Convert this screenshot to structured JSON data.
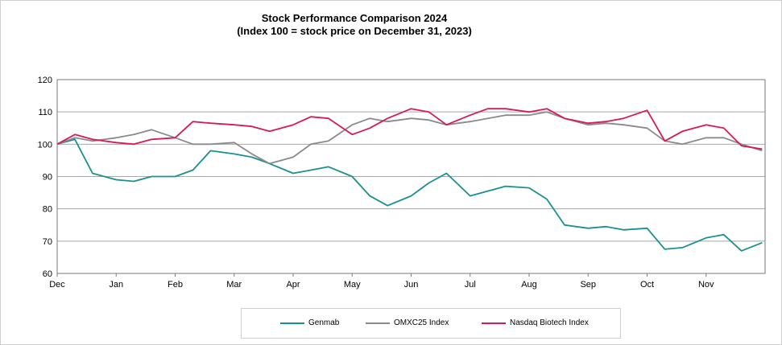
{
  "chart_data": {
    "type": "line",
    "title": "Stock Performance Comparison 2024",
    "subtitle": "(Index 100 = stock price on December 31, 2023)",
    "xlabel": "",
    "ylabel": "",
    "x_ticks": [
      "Dec",
      "Jan",
      "Feb",
      "Mar",
      "Apr",
      "May",
      "Jun",
      "Jul",
      "Aug",
      "Sep",
      "Oct",
      "Nov"
    ],
    "ylim": [
      60,
      120
    ],
    "y_ticks": [
      60,
      70,
      80,
      90,
      100,
      110,
      120
    ],
    "grid": true,
    "legend_position": "bottom",
    "x_months": [
      0,
      0.3,
      0.6,
      1,
      1.3,
      1.6,
      2,
      2.3,
      2.6,
      3,
      3.3,
      3.6,
      4,
      4.3,
      4.6,
      5,
      5.3,
      5.6,
      6,
      6.3,
      6.6,
      7,
      7.3,
      7.6,
      8,
      8.3,
      8.6,
      9,
      9.3,
      9.6,
      10,
      10.3,
      10.6,
      11,
      11.3,
      11.6,
      11.95
    ],
    "series": [
      {
        "name": "Genmab",
        "color": "#1a9090",
        "values": [
          100,
          101.5,
          91,
          89,
          88.5,
          90,
          90,
          92,
          98,
          97,
          96,
          94,
          91,
          92,
          93,
          90,
          84,
          81,
          84,
          88,
          91,
          84,
          85.5,
          87,
          86.5,
          83,
          75,
          74,
          74.5,
          73.5,
          74,
          67.5,
          68,
          71,
          72,
          67,
          69.5
        ]
      },
      {
        "name": "OMXC25 Index",
        "color": "#8a8a8a",
        "values": [
          100,
          102,
          101,
          102,
          103,
          104.5,
          102,
          100,
          100,
          100.5,
          97,
          94,
          96,
          100,
          101,
          106,
          108,
          107,
          108,
          107.5,
          106,
          107,
          108,
          109,
          109,
          110,
          108,
          106,
          106.5,
          106,
          105,
          101,
          100,
          102,
          102,
          100,
          98
        ]
      },
      {
        "name": "Nasdaq Biotech Index",
        "color": "#d6195c",
        "values": [
          100,
          103,
          101.5,
          100.5,
          100,
          101.5,
          102,
          107,
          106.5,
          106,
          105.5,
          104,
          106,
          108.5,
          108,
          103,
          105,
          108,
          111,
          110,
          106,
          109,
          111,
          111,
          110,
          111,
          108,
          106.5,
          107,
          108,
          110.5,
          101,
          104,
          106,
          105,
          99.5,
          98.5
        ]
      }
    ]
  }
}
